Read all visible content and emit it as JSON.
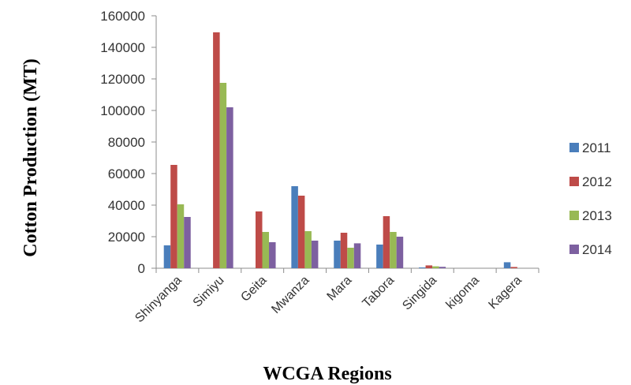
{
  "chart_data": {
    "type": "bar",
    "xlabel": "WCGA Regions",
    "ylabel": "Cotton Production (MT)",
    "ylim": [
      0,
      160000
    ],
    "yticks": [
      0,
      20000,
      40000,
      60000,
      80000,
      100000,
      120000,
      140000,
      160000
    ],
    "grid": false,
    "legend_position": "right",
    "categories": [
      "Shinyanga",
      "Simiyu",
      "Geita",
      "Mwanza",
      "Mara",
      "Tabora",
      "Singida",
      "kigoma",
      "Kagera"
    ],
    "series": [
      {
        "name": "2011",
        "color": "#4a7ebb",
        "values": [
          14500,
          0,
          0,
          52000,
          17500,
          15000,
          500,
          0,
          3800
        ]
      },
      {
        "name": "2012",
        "color": "#be4b48",
        "values": [
          65500,
          149500,
          36000,
          46000,
          22500,
          33000,
          1800,
          0,
          800
        ]
      },
      {
        "name": "2013",
        "color": "#98b954",
        "values": [
          40500,
          117500,
          23000,
          23500,
          13000,
          23000,
          1200,
          0,
          0
        ]
      },
      {
        "name": "2014",
        "color": "#7d60a0",
        "values": [
          32500,
          102000,
          16500,
          17500,
          15800,
          20000,
          900,
          0,
          0
        ]
      }
    ]
  }
}
